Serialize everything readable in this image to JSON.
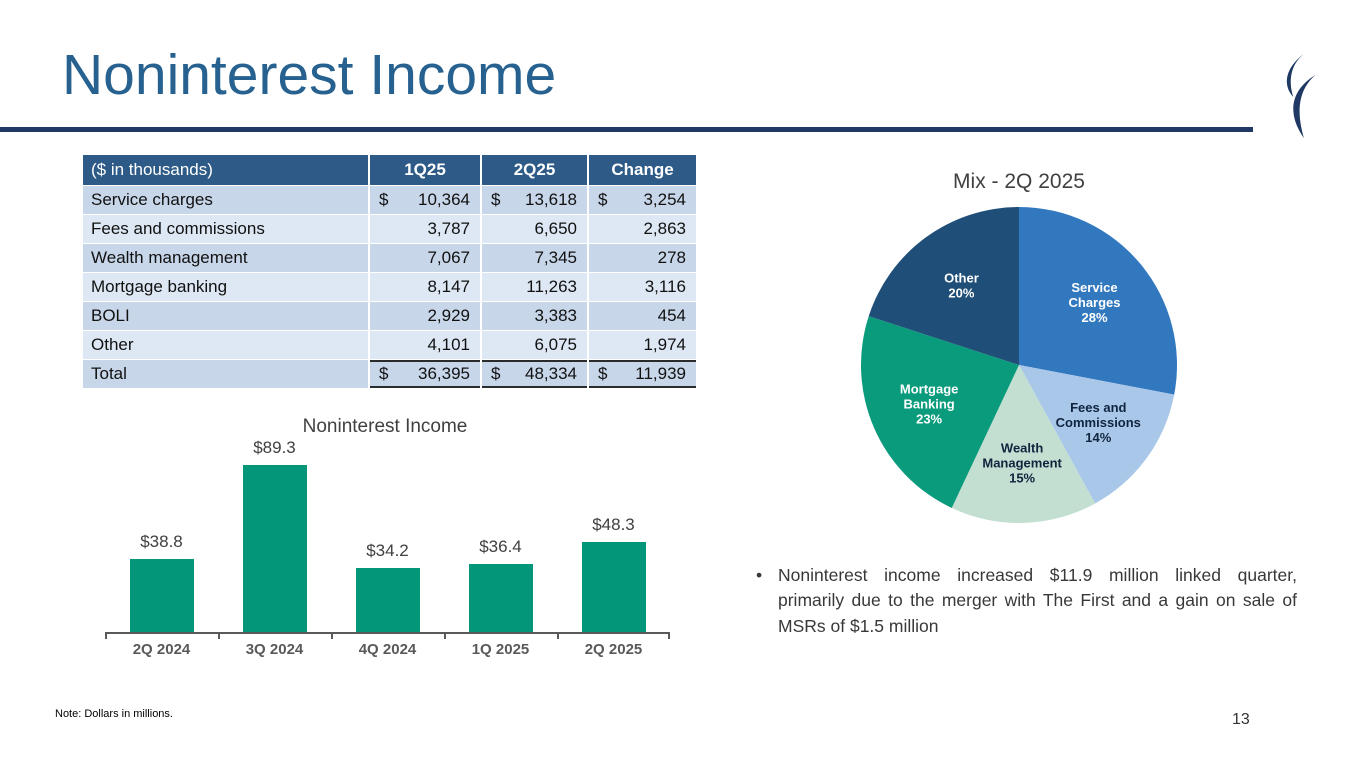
{
  "slide": {
    "title": "Noninterest Income",
    "bullet_marker": "•",
    "bullet_text": "Noninterest income increased $11.9 million linked quarter, primarily due to the merger with The First and a gain on sale of MSRs of $1.5 million",
    "footnote": "Note: Dollars in millions.",
    "page_number": "13"
  },
  "colors": {
    "title_blue": "#26618F",
    "rule_navy": "#1F3864",
    "table_header_bg": "#2D5A87",
    "row_dark": "#C7D6E9",
    "row_light": "#DDE8F4",
    "bar_teal": "#049678"
  },
  "table": {
    "columns": [
      "($ in thousands)",
      "1Q25",
      "2Q25",
      "Change"
    ],
    "rows": [
      {
        "label": "Service charges",
        "dollar": true,
        "values": [
          "10,364",
          "13,618",
          "3,254"
        ],
        "is_total": false
      },
      {
        "label": "Fees and commissions",
        "dollar": false,
        "values": [
          "3,787",
          "6,650",
          "2,863"
        ],
        "is_total": false
      },
      {
        "label": "Wealth management",
        "dollar": false,
        "values": [
          "7,067",
          "7,345",
          "278"
        ],
        "is_total": false
      },
      {
        "label": "Mortgage banking",
        "dollar": false,
        "values": [
          "8,147",
          "11,263",
          "3,116"
        ],
        "is_total": false
      },
      {
        "label": "BOLI",
        "dollar": false,
        "values": [
          "2,929",
          "3,383",
          "454"
        ],
        "is_total": false
      },
      {
        "label": "Other",
        "dollar": false,
        "values": [
          "4,101",
          "6,075",
          "1,974"
        ],
        "is_total": false
      },
      {
        "label": "Total",
        "dollar": true,
        "values": [
          "36,395",
          "48,334",
          "11,939"
        ],
        "is_total": true
      }
    ]
  },
  "chart_data": [
    {
      "type": "bar",
      "title": "Noninterest Income",
      "categories": [
        "2Q 2024",
        "3Q 2024",
        "4Q 2024",
        "1Q 2025",
        "2Q 2025"
      ],
      "values": [
        38.8,
        89.3,
        34.2,
        36.4,
        48.3
      ],
      "data_labels": [
        "$38.8",
        "$89.3",
        "$34.2",
        "$36.4",
        "$48.3"
      ],
      "xlabel": "",
      "ylabel": "",
      "ylim": [
        0,
        95
      ],
      "grid": false,
      "legend": false,
      "bar_color": "#049678"
    },
    {
      "type": "pie",
      "title": "Mix - 2Q 2025",
      "start_angle": "12 o'clock, clockwise",
      "slices": [
        {
          "label": "Service Charges",
          "label_lines": [
            "Service",
            "Charges"
          ],
          "pct": 28,
          "color": "#3178BE",
          "label_color": "#FFFFFF"
        },
        {
          "label": "Fees and Commissions",
          "label_lines": [
            "Fees and",
            "Commissions"
          ],
          "pct": 14,
          "color": "#A9C7E9",
          "label_color": "#10243E"
        },
        {
          "label": "Wealth Management",
          "label_lines": [
            "Wealth",
            "Management"
          ],
          "pct": 15,
          "color": "#C3DFD2",
          "label_color": "#10243E"
        },
        {
          "label": "Mortgage Banking",
          "label_lines": [
            "Mortgage",
            "Banking"
          ],
          "pct": 23,
          "color": "#0A9B7C",
          "label_color": "#FFFFFF"
        },
        {
          "label": "Other",
          "label_lines": [
            "Other"
          ],
          "pct": 20,
          "color": "#1F4E79",
          "label_color": "#FFFFFF"
        }
      ]
    }
  ]
}
